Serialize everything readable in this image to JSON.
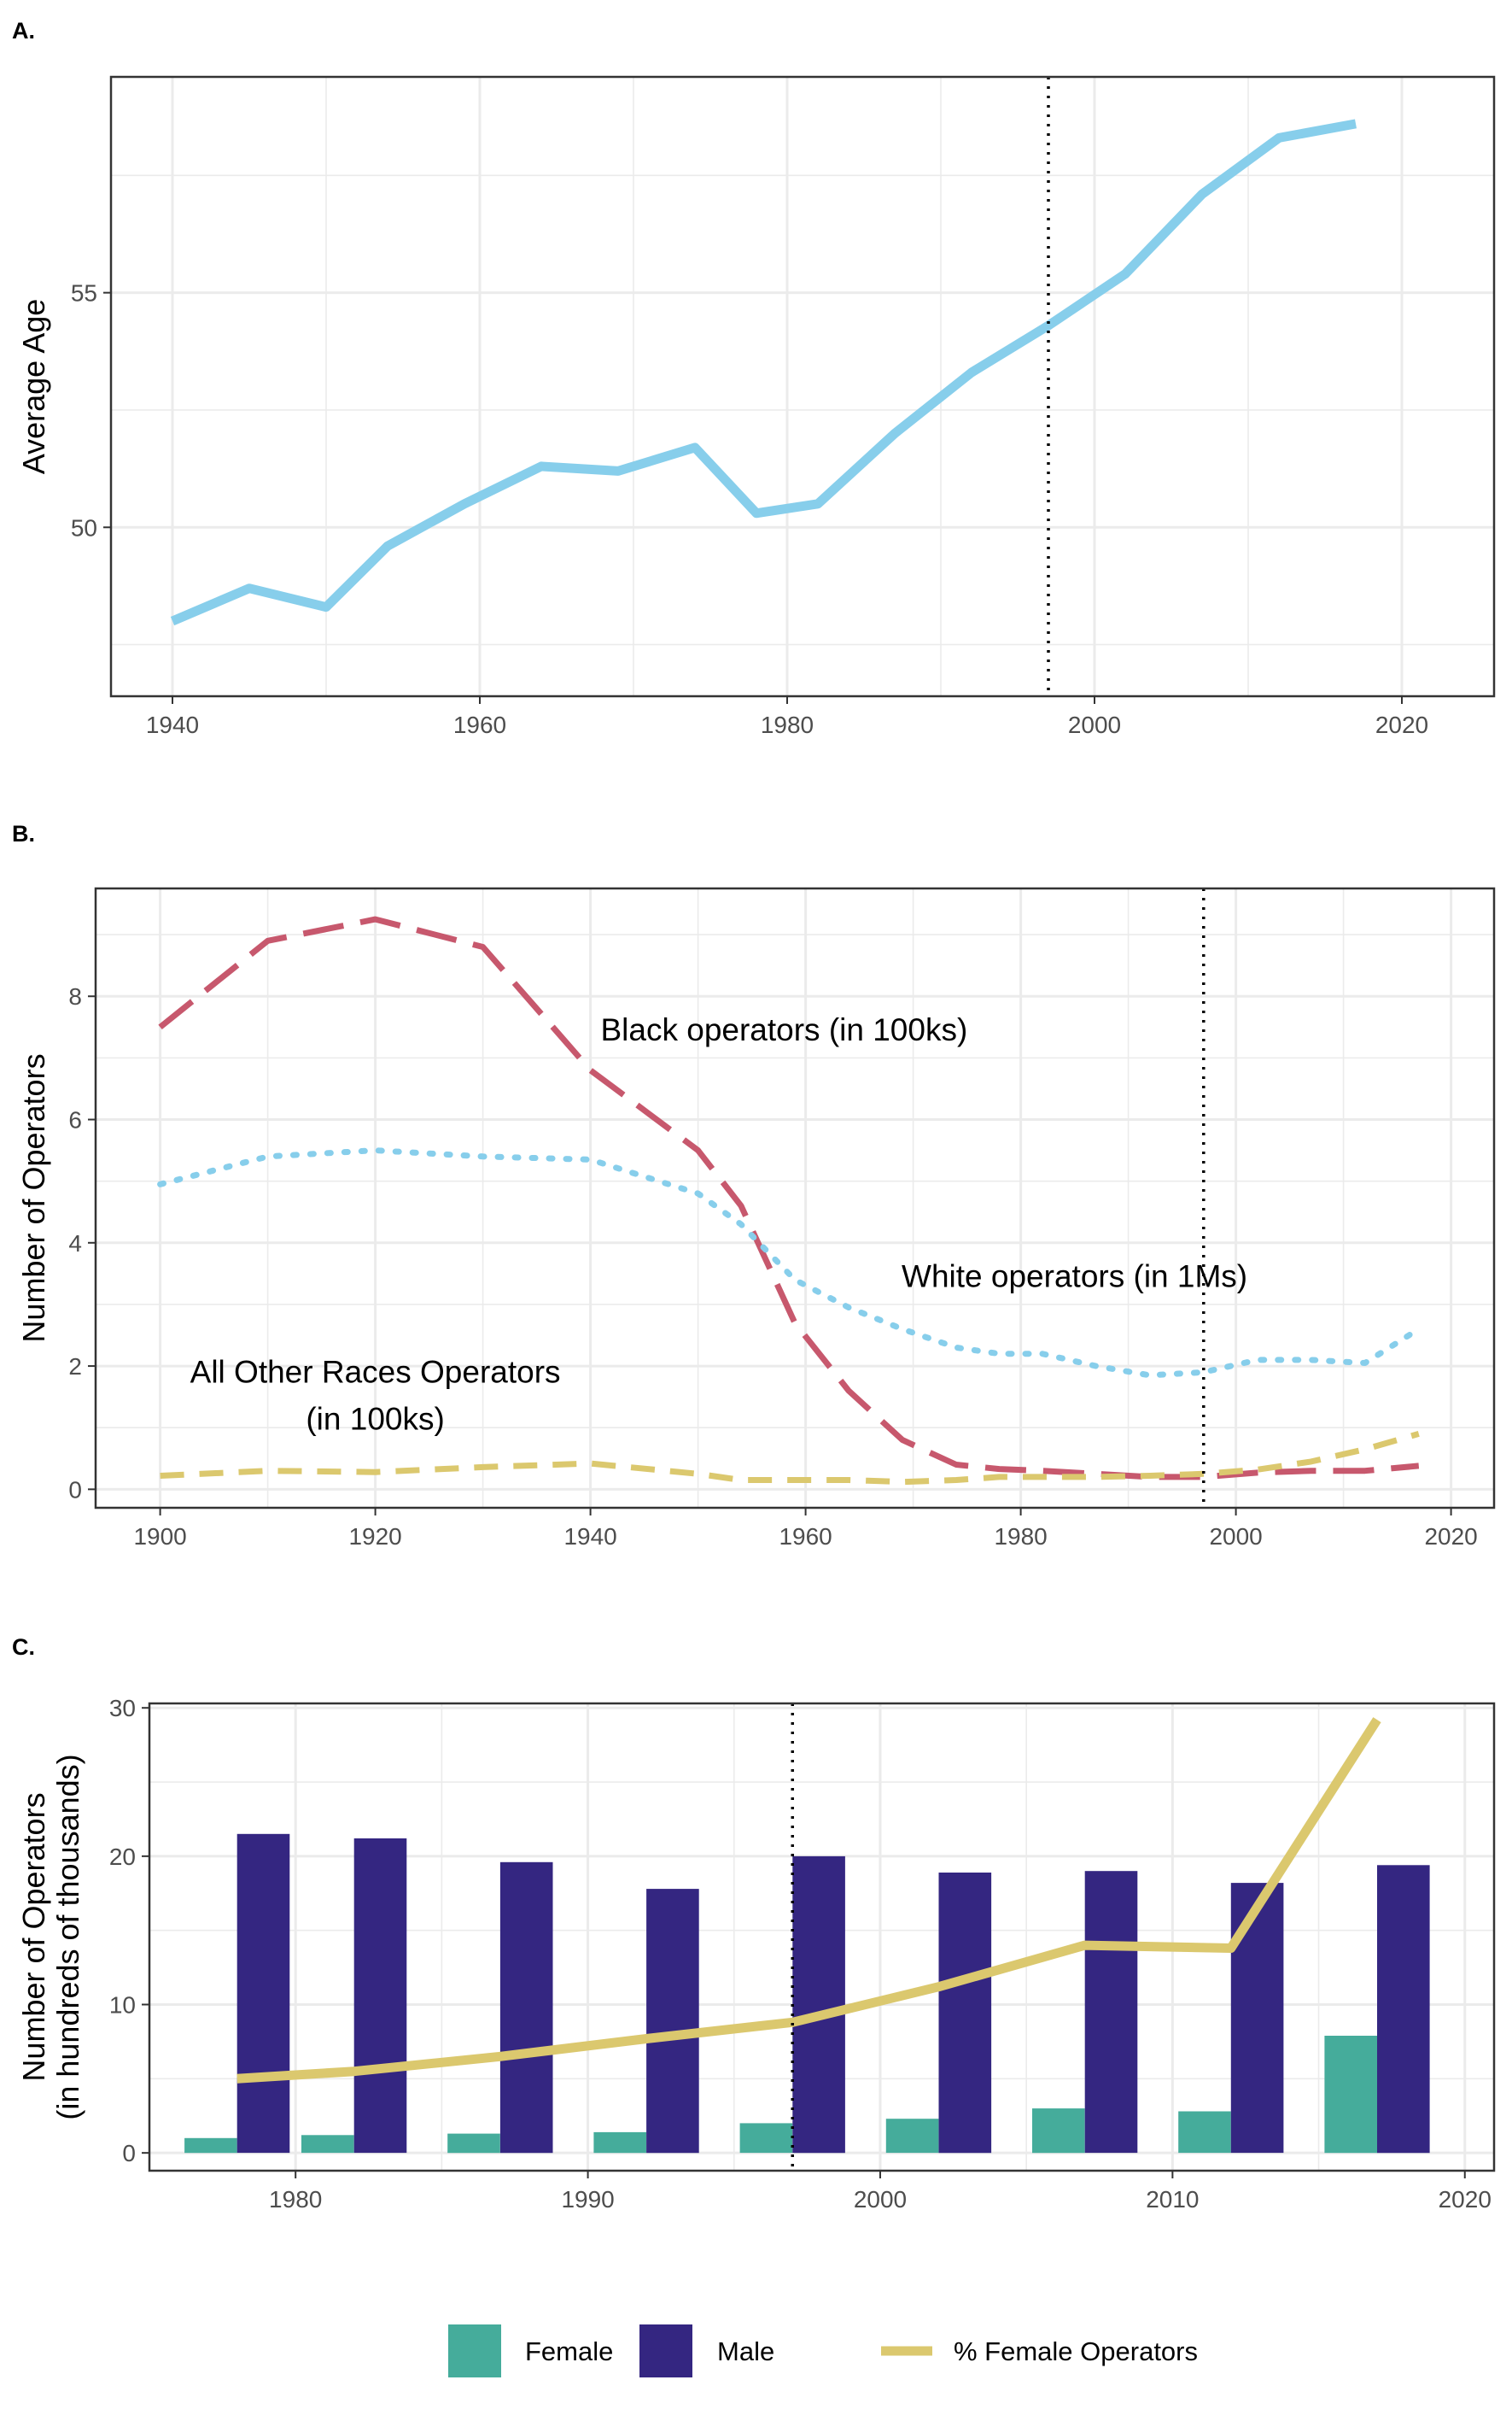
{
  "chart_data": [
    {
      "panel_label": "A.",
      "type": "line",
      "ylabel": "Average Age",
      "xlabel": "",
      "xlim": [
        1936,
        2026
      ],
      "ylim": [
        46.4,
        59.6
      ],
      "x_ticks": [
        1940,
        1960,
        1980,
        2000,
        2020
      ],
      "y_ticks": [
        50,
        55
      ],
      "grid": true,
      "reference_line_x": 1997,
      "series": [
        {
          "color": "#87CEEB",
          "style": "solid",
          "x": [
            1940,
            1945,
            1950,
            1954,
            1959,
            1964,
            1969,
            1974,
            1978,
            1982,
            1987,
            1992,
            1997,
            2002,
            2007,
            2012,
            2017
          ],
          "y": [
            48.0,
            48.7,
            48.3,
            49.6,
            50.5,
            51.3,
            51.2,
            51.7,
            50.3,
            50.5,
            52.0,
            53.3,
            54.3,
            55.4,
            57.1,
            58.3,
            58.6
          ]
        }
      ]
    },
    {
      "panel_label": "B.",
      "type": "line",
      "ylabel": "Number of Operators",
      "xlabel": "",
      "xlim": [
        1894,
        2024
      ],
      "ylim": [
        -0.3,
        9.75
      ],
      "x_ticks": [
        1900,
        1920,
        1940,
        1960,
        1980,
        2000,
        2020
      ],
      "y_ticks": [
        0,
        2,
        4,
        6,
        8
      ],
      "grid": true,
      "reference_line_x": 1997,
      "series": [
        {
          "label": "Black operators (in 100ks)",
          "label_x": 1958,
          "label_y": 7.45,
          "color": "#C7586D",
          "style": "longdash",
          "x": [
            1900,
            1910,
            1920,
            1930,
            1940,
            1950,
            1954,
            1959,
            1964,
            1969,
            1974,
            1978,
            1982,
            1987,
            1992,
            1997,
            2002,
            2007,
            2012,
            2017
          ],
          "y": [
            7.5,
            8.9,
            9.25,
            8.8,
            6.8,
            5.5,
            4.6,
            2.7,
            1.6,
            0.8,
            0.4,
            0.33,
            0.3,
            0.25,
            0.2,
            0.2,
            0.27,
            0.3,
            0.3,
            0.38
          ]
        },
        {
          "label": "White operators (in 1Ms)",
          "label_x": 1985,
          "label_y": 3.45,
          "color": "#87CEEB",
          "style": "dotted",
          "x": [
            1900,
            1910,
            1920,
            1930,
            1940,
            1950,
            1954,
            1959,
            1964,
            1969,
            1974,
            1978,
            1982,
            1987,
            1992,
            1997,
            2002,
            2007,
            2012,
            2017
          ],
          "y": [
            4.95,
            5.4,
            5.5,
            5.4,
            5.35,
            4.8,
            4.3,
            3.4,
            2.95,
            2.6,
            2.3,
            2.2,
            2.2,
            2.0,
            1.85,
            1.9,
            2.1,
            2.1,
            2.05,
            2.6
          ]
        },
        {
          "label_lines": [
            "All Other Races Operators",
            "(in 100ks)"
          ],
          "label_x": 1920,
          "label_y": 1.9,
          "color": "#DBC86E",
          "style": "dashed",
          "x": [
            1900,
            1910,
            1920,
            1930,
            1940,
            1950,
            1954,
            1959,
            1964,
            1969,
            1974,
            1978,
            1982,
            1987,
            1992,
            1997,
            2002,
            2007,
            2012,
            2017
          ],
          "y": [
            0.22,
            0.3,
            0.28,
            0.36,
            0.42,
            0.25,
            0.15,
            0.15,
            0.15,
            0.12,
            0.15,
            0.2,
            0.2,
            0.2,
            0.22,
            0.25,
            0.32,
            0.45,
            0.65,
            0.9
          ]
        }
      ]
    },
    {
      "panel_label": "C.",
      "type": "bar",
      "ylabel_lines": [
        "Number of Operators",
        "(in hundreds of thousands)"
      ],
      "xlabel": "",
      "xlim": [
        1975,
        2021
      ],
      "ylim": [
        -1.2,
        30.3
      ],
      "x_ticks": [
        1980,
        1990,
        2000,
        2010,
        2020
      ],
      "y_ticks": [
        0,
        10,
        20,
        30
      ],
      "grid": true,
      "reference_line_x": 1997,
      "x": [
        1978,
        1982,
        1987,
        1992,
        1997,
        2002,
        2007,
        2012,
        2017
      ],
      "series": [
        {
          "name": "Female",
          "color": "#45AC9B",
          "values": [
            1.0,
            1.2,
            1.3,
            1.4,
            2.0,
            2.3,
            3.0,
            2.8,
            7.9
          ]
        },
        {
          "name": "Male",
          "color": "#342681",
          "values": [
            21.5,
            21.2,
            19.6,
            17.8,
            20.0,
            18.9,
            19.0,
            18.2,
            19.4
          ]
        }
      ],
      "line_series": {
        "name": "% Female Operators",
        "color": "#DBC86E",
        "x": [
          1978,
          1982,
          1987,
          1992,
          1997,
          2002,
          2007,
          2012,
          2017
        ],
        "y": [
          5.0,
          5.5,
          6.5,
          7.7,
          8.8,
          11.2,
          14.0,
          13.8,
          29.2
        ]
      }
    }
  ],
  "legend": {
    "placement": "bottom",
    "items": [
      {
        "label": "Female",
        "kind": "box",
        "color": "#45AC9B"
      },
      {
        "label": "Male",
        "kind": "box",
        "color": "#342681"
      },
      {
        "label": "% Female Operators",
        "kind": "line",
        "color": "#DBC86E"
      }
    ]
  }
}
